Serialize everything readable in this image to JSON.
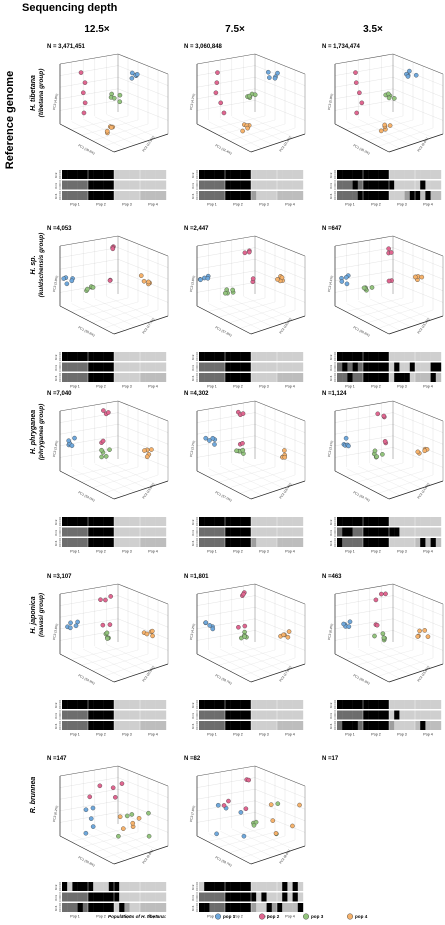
{
  "figure": {
    "title": "Sequencing depth",
    "side_title": "Reference genome",
    "depths": [
      "12.5×",
      "7.5×",
      "3.5×"
    ],
    "row_titles": [
      {
        "name": "H. tibetana",
        "group": "(tibetana group)"
      },
      {
        "name": "H. sp.",
        "group": "(kuldschensis group)"
      },
      {
        "name": "H. phryganea",
        "group": "(phryganea group)"
      },
      {
        "name": "H. japonica",
        "group": "(navasi group)"
      },
      {
        "name": "R. brunnea",
        "group": ""
      }
    ],
    "k_labels": [
      "K=2",
      "K=3",
      "K=4"
    ],
    "pop_labels": [
      "Pop 1",
      "Pop 2",
      "Pop 3",
      "Pop 4"
    ],
    "legend": {
      "title": "Populations of H. tibetana:",
      "items": [
        {
          "label": "pop 1",
          "color": "#6fa8dc"
        },
        {
          "label": "pop 2",
          "color": "#e06690"
        },
        {
          "label": "pop 3",
          "color": "#93c47d"
        },
        {
          "label": "pop 4",
          "color": "#f6b26b"
        }
      ]
    },
    "colors": {
      "k_black": "#000000",
      "k_dark": "#6d6d6d",
      "k_light": "#cfcfcf"
    },
    "panels": [
      {
        "row": 0,
        "col": 0,
        "n": "N = 3,471,451",
        "pc1": "PC1 (29.6%)",
        "pc2": "PC2 (12.5%)",
        "pc3": "PC3 (4.8%)"
      },
      {
        "row": 0,
        "col": 1,
        "n": "N = 3,060,848",
        "pc1": "PC1 (31.4%)",
        "pc2": "PC2 (11.8%)",
        "pc3": "PC3 (4.7%)"
      },
      {
        "row": 0,
        "col": 2,
        "n": "N = 1,734,474",
        "pc1": "PC1 (35.2%)",
        "pc2": "PC2 (9.6%)",
        "pc3": "PC3 (5.0%)"
      },
      {
        "row": 1,
        "col": 0,
        "n": "N =4,053",
        "pc1": "PC1 (55.6%)",
        "pc2": "PC2 (17.7%)",
        "pc3": "PC3 (3.8%)"
      },
      {
        "row": 1,
        "col": 1,
        "n": "N =2,447",
        "pc1": "PC1 (57.8%)",
        "pc2": "PC2 (18.0%)",
        "pc3": "PC3 (3.6%)"
      },
      {
        "row": 1,
        "col": 2,
        "n": "N =647",
        "pc1": "PC1 (60.6%)",
        "pc2": "PC2 (15.2%)",
        "pc3": "PC3 (4.1%)"
      },
      {
        "row": 2,
        "col": 0,
        "n": "N =7,040",
        "pc1": "PC1 (54.0%)",
        "pc2": "PC2 (19.6%)",
        "pc3": "PC3 (3.4%)"
      },
      {
        "row": 2,
        "col": 1,
        "n": "N =4,302",
        "pc1": "PC1 (57.0%)",
        "pc2": "PC2 (18.4%)",
        "pc3": "PC3 (3.7%)"
      },
      {
        "row": 2,
        "col": 2,
        "n": "N =1,124",
        "pc1": "PC1 (64.7%)",
        "pc2": "PC2 (14.6%)",
        "pc3": "PC3 (3.1%)"
      },
      {
        "row": 3,
        "col": 0,
        "n": "N =3,107",
        "pc1": "PC1 (54.9%)",
        "pc2": "PC2 (20.6%)",
        "pc3": "PC3 (3.6%)"
      },
      {
        "row": 3,
        "col": 1,
        "n": "N =1,801",
        "pc1": "PC1 (58.7%)",
        "pc2": "PC2 (17.6%)",
        "pc3": "PC3 (4.2%)"
      },
      {
        "row": 3,
        "col": 2,
        "n": "N =463",
        "pc1": "PC1 (60.3%)",
        "pc2": "PC2 (15.6%)",
        "pc3": "PC3 (6.4%)"
      },
      {
        "row": 4,
        "col": 0,
        "n": "N =147",
        "pc1": "PC1 (50.8%)",
        "pc2": "PC2 (9.8%)",
        "pc3": "PC3 (6.2%)"
      },
      {
        "row": 4,
        "col": 1,
        "n": "N =82",
        "pc1": "PC1 (58.7%)",
        "pc2": "PC2 (8.6%)",
        "pc3": "PC3 (7.6%)"
      },
      {
        "row": 4,
        "col": 2,
        "n": "N =17",
        "empty": true
      }
    ]
  }
}
